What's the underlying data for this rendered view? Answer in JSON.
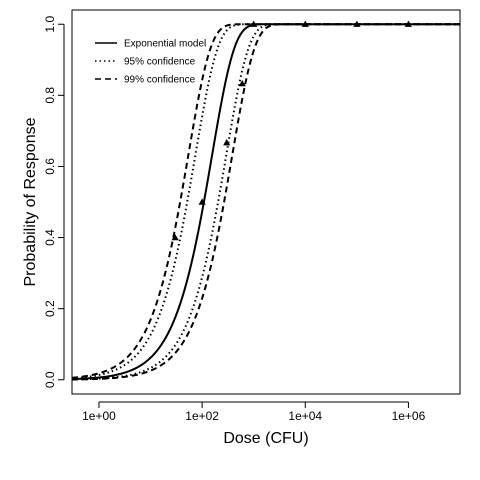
{
  "chart_data": {
    "type": "line",
    "title": "",
    "xlabel": "Dose (CFU)",
    "ylabel": "Probability of Response",
    "x_scale": "log10",
    "xlim": [
      0.3,
      10000000
    ],
    "ylim": [
      -0.04,
      1.04
    ],
    "x_ticks": [
      1,
      100,
      10000,
      1000000
    ],
    "x_tick_labels": [
      "1e+00",
      "1e+02",
      "1e+04",
      "1e+06"
    ],
    "y_ticks": [
      0,
      0.2,
      0.4,
      0.6,
      0.8,
      1
    ],
    "y_tick_labels": [
      "0.0",
      "0.2",
      "0.4",
      "0.6",
      "0.8",
      "1.0"
    ],
    "grid": false,
    "legend_position": "top-left",
    "legend": [
      {
        "label": "Exponential model",
        "style": "solid"
      },
      {
        "label": "95% confidence",
        "style": "dotted"
      },
      {
        "label": "99% confidence",
        "style": "dashed"
      }
    ],
    "series": [
      {
        "name": "Exponential model",
        "style": "solid",
        "model": "exponential",
        "k": 0.0064
      },
      {
        "name": "95% confidence",
        "style": "dotted",
        "model": "exponential",
        "k": 0.0135
      },
      {
        "name": "95% confidence",
        "style": "dotted",
        "model": "exponential",
        "k": 0.0034
      },
      {
        "name": "99% confidence",
        "style": "dashed",
        "model": "exponential",
        "k": 0.0185
      },
      {
        "name": "99% confidence",
        "style": "dashed",
        "model": "exponential",
        "k": 0.0026
      }
    ],
    "observations": {
      "marker": "triangle",
      "x": [
        30,
        100,
        300,
        600,
        1000,
        10000,
        100000,
        1000000
      ],
      "y": [
        0.4,
        0.5,
        0.667,
        0.833,
        1.0,
        1.0,
        1.0,
        1.0
      ]
    },
    "color": "#000000"
  }
}
